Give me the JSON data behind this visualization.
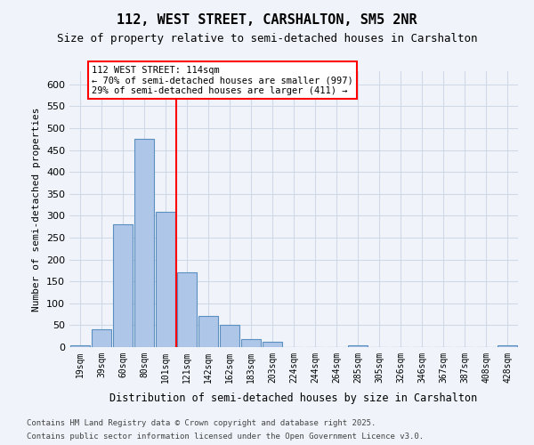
{
  "title_line1": "112, WEST STREET, CARSHALTON, SM5 2NR",
  "title_line2": "Size of property relative to semi-detached houses in Carshalton",
  "xlabel": "Distribution of semi-detached houses by size in Carshalton",
  "ylabel": "Number of semi-detached properties",
  "categories": [
    "19sqm",
    "39sqm",
    "60sqm",
    "80sqm",
    "101sqm",
    "121sqm",
    "142sqm",
    "162sqm",
    "183sqm",
    "203sqm",
    "224sqm",
    "244sqm",
    "264sqm",
    "285sqm",
    "305sqm",
    "326sqm",
    "346sqm",
    "367sqm",
    "387sqm",
    "408sqm",
    "428sqm"
  ],
  "values": [
    5,
    40,
    280,
    475,
    308,
    170,
    72,
    50,
    18,
    12,
    0,
    0,
    0,
    5,
    0,
    0,
    0,
    0,
    0,
    0,
    5
  ],
  "bar_color": "#aec6e8",
  "bar_edge_color": "#5a8fc2",
  "grid_color": "#d0d8e8",
  "background_color": "#f0f4fa",
  "vline_x": 4.5,
  "vline_color": "red",
  "annotation_title": "112 WEST STREET: 114sqm",
  "annotation_line1": "← 70% of semi-detached houses are smaller (997)",
  "annotation_line2": "29% of semi-detached houses are larger (411) →",
  "annotation_box_color": "white",
  "annotation_box_edge": "red",
  "ylim": [
    0,
    630
  ],
  "yticks": [
    0,
    50,
    100,
    150,
    200,
    250,
    300,
    350,
    400,
    450,
    500,
    550,
    600
  ],
  "footnote_line1": "Contains HM Land Registry data © Crown copyright and database right 2025.",
  "footnote_line2": "Contains public sector information licensed under the Open Government Licence v3.0."
}
